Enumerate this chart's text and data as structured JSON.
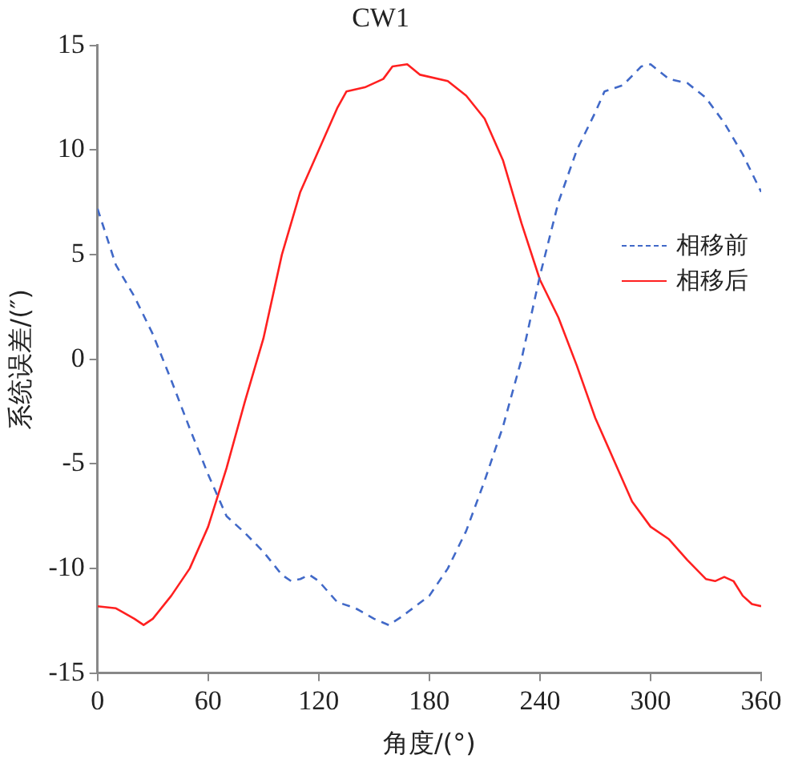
{
  "chart_data": {
    "type": "line",
    "title": "CW1",
    "xlabel": "角度/(°)",
    "ylabel": "系统误差/(″)",
    "xlim": [
      0,
      360
    ],
    "xticks": [
      0,
      60,
      120,
      180,
      240,
      300,
      360
    ],
    "ylim": [
      -15,
      15
    ],
    "yticks": [
      -15,
      -10,
      -5,
      0,
      5,
      10,
      15
    ],
    "grid": false,
    "legend": "right",
    "marker": "none",
    "series": [
      {
        "name": "相移前",
        "color": "#4169c8",
        "line_style": "dashed",
        "x": [
          0,
          10,
          20,
          30,
          40,
          50,
          60,
          70,
          80,
          90,
          100,
          105,
          110,
          115,
          120,
          130,
          140,
          150,
          158,
          165,
          180,
          190,
          200,
          210,
          220,
          230,
          240,
          250,
          260,
          270,
          275,
          285,
          295,
          300,
          310,
          320,
          330,
          340,
          350,
          360
        ],
        "values": [
          7.2,
          4.5,
          3,
          1.2,
          -1,
          -3.3,
          -5.5,
          -7.5,
          -8.3,
          -9.2,
          -10.3,
          -10.6,
          -10.5,
          -10.3,
          -10.6,
          -11.6,
          -11.9,
          -12.4,
          -12.7,
          -12.3,
          -11.3,
          -10,
          -8.2,
          -5.8,
          -3.2,
          0,
          4,
          7.5,
          10,
          11.8,
          12.8,
          13.1,
          14,
          14.1,
          13.4,
          13.2,
          12.5,
          11.3,
          9.8,
          8
        ]
      },
      {
        "name": "相移后",
        "color": "#ff2020",
        "line_style": "solid",
        "x": [
          0,
          10,
          20,
          25,
          30,
          40,
          50,
          60,
          70,
          80,
          90,
          100,
          110,
          120,
          130,
          135,
          145,
          155,
          160,
          168,
          175,
          190,
          200,
          210,
          220,
          230,
          240,
          250,
          260,
          270,
          280,
          290,
          300,
          310,
          320,
          330,
          335,
          340,
          345,
          350,
          355,
          360
        ],
        "values": [
          -11.8,
          -11.9,
          -12.4,
          -12.7,
          -12.4,
          -11.3,
          -10,
          -8,
          -5.2,
          -2,
          1,
          5,
          8,
          10,
          12,
          12.8,
          13,
          13.4,
          14,
          14.1,
          13.6,
          13.3,
          12.6,
          11.5,
          9.5,
          6.5,
          3.8,
          2,
          -0.3,
          -2.8,
          -4.8,
          -6.8,
          -8,
          -8.6,
          -9.6,
          -10.5,
          -10.6,
          -10.4,
          -10.6,
          -11.3,
          -11.7,
          -11.8
        ]
      }
    ]
  }
}
